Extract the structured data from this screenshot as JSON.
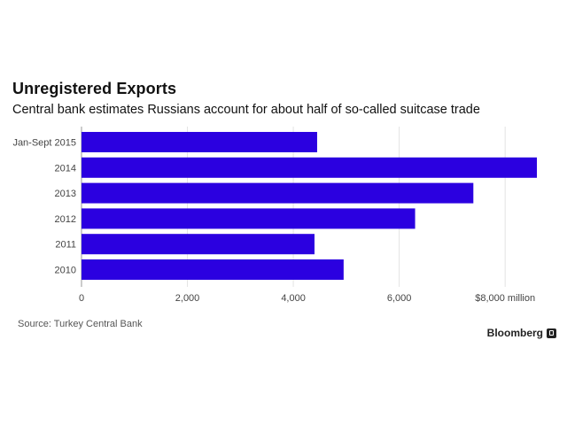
{
  "chart_data": {
    "type": "bar",
    "orientation": "horizontal",
    "title": "Unregistered Exports",
    "subtitle": "Central bank estimates Russians account for about half of so-called suitcase trade",
    "categories": [
      "Jan-Sept 2015",
      "2014",
      "2013",
      "2012",
      "2011",
      "2010"
    ],
    "values": [
      4450,
      8600,
      7400,
      6300,
      4400,
      4950
    ],
    "xlim": [
      0,
      8700
    ],
    "x_ticks": [
      0,
      2000,
      4000,
      6000,
      8000
    ],
    "x_tick_labels": [
      "0",
      "2,000",
      "4,000",
      "6,000",
      "$8,000 million"
    ],
    "grid": true,
    "bar_color": "#2b00e0"
  },
  "source": "Source: Turkey Central Bank",
  "brand": "Bloomberg"
}
